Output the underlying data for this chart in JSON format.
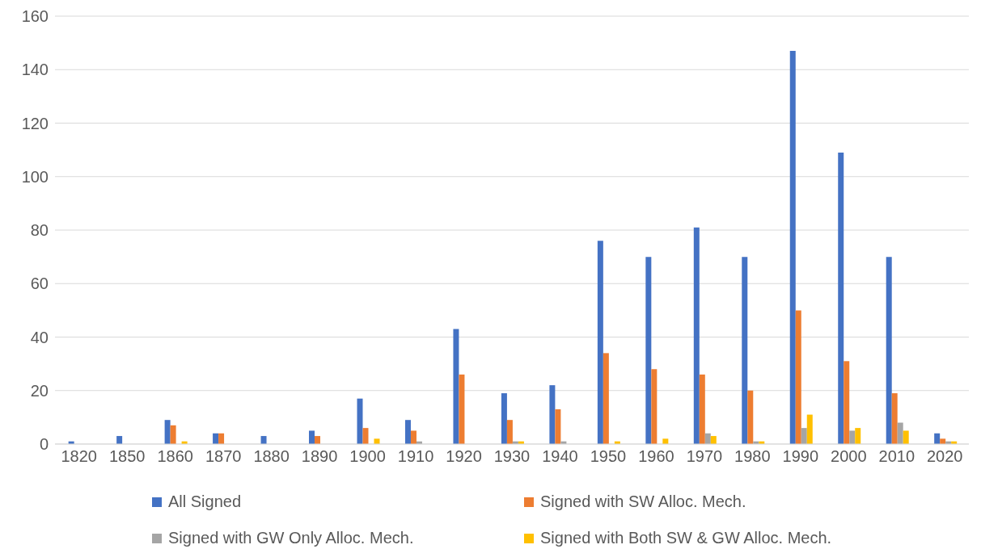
{
  "chart_data": {
    "type": "bar",
    "categories": [
      "1820",
      "1850",
      "1860",
      "1870",
      "1880",
      "1890",
      "1900",
      "1910",
      "1920",
      "1930",
      "1940",
      "1950",
      "1960",
      "1970",
      "1980",
      "1990",
      "2000",
      "2010",
      "2020"
    ],
    "series": [
      {
        "name": "All Signed",
        "color": "#4472c4",
        "values": [
          1,
          3,
          9,
          4,
          3,
          5,
          17,
          9,
          43,
          19,
          22,
          76,
          70,
          81,
          70,
          147,
          109,
          70,
          4
        ]
      },
      {
        "name": "Signed with SW Alloc. Mech.",
        "color": "#ed7d31",
        "values": [
          0,
          0,
          7,
          4,
          0,
          3,
          6,
          5,
          26,
          9,
          13,
          34,
          28,
          26,
          20,
          50,
          31,
          19,
          2
        ]
      },
      {
        "name": "Signed with GW Only Alloc. Mech.",
        "color": "#a5a5a5",
        "values": [
          0,
          0,
          0,
          0,
          0,
          0,
          0,
          1,
          0,
          1,
          1,
          0,
          0,
          4,
          1,
          6,
          5,
          8,
          1
        ]
      },
      {
        "name": "Signed with Both SW & GW Alloc. Mech.",
        "color": "#ffc000",
        "values": [
          0,
          0,
          1,
          0,
          0,
          0,
          2,
          0,
          0,
          1,
          0,
          1,
          2,
          3,
          1,
          11,
          6,
          5,
          1
        ]
      }
    ],
    "ylim": [
      0,
      160
    ],
    "yticks": [
      0,
      20,
      40,
      60,
      80,
      100,
      120,
      140,
      160
    ],
    "grid": "y",
    "legend": "bottom"
  }
}
